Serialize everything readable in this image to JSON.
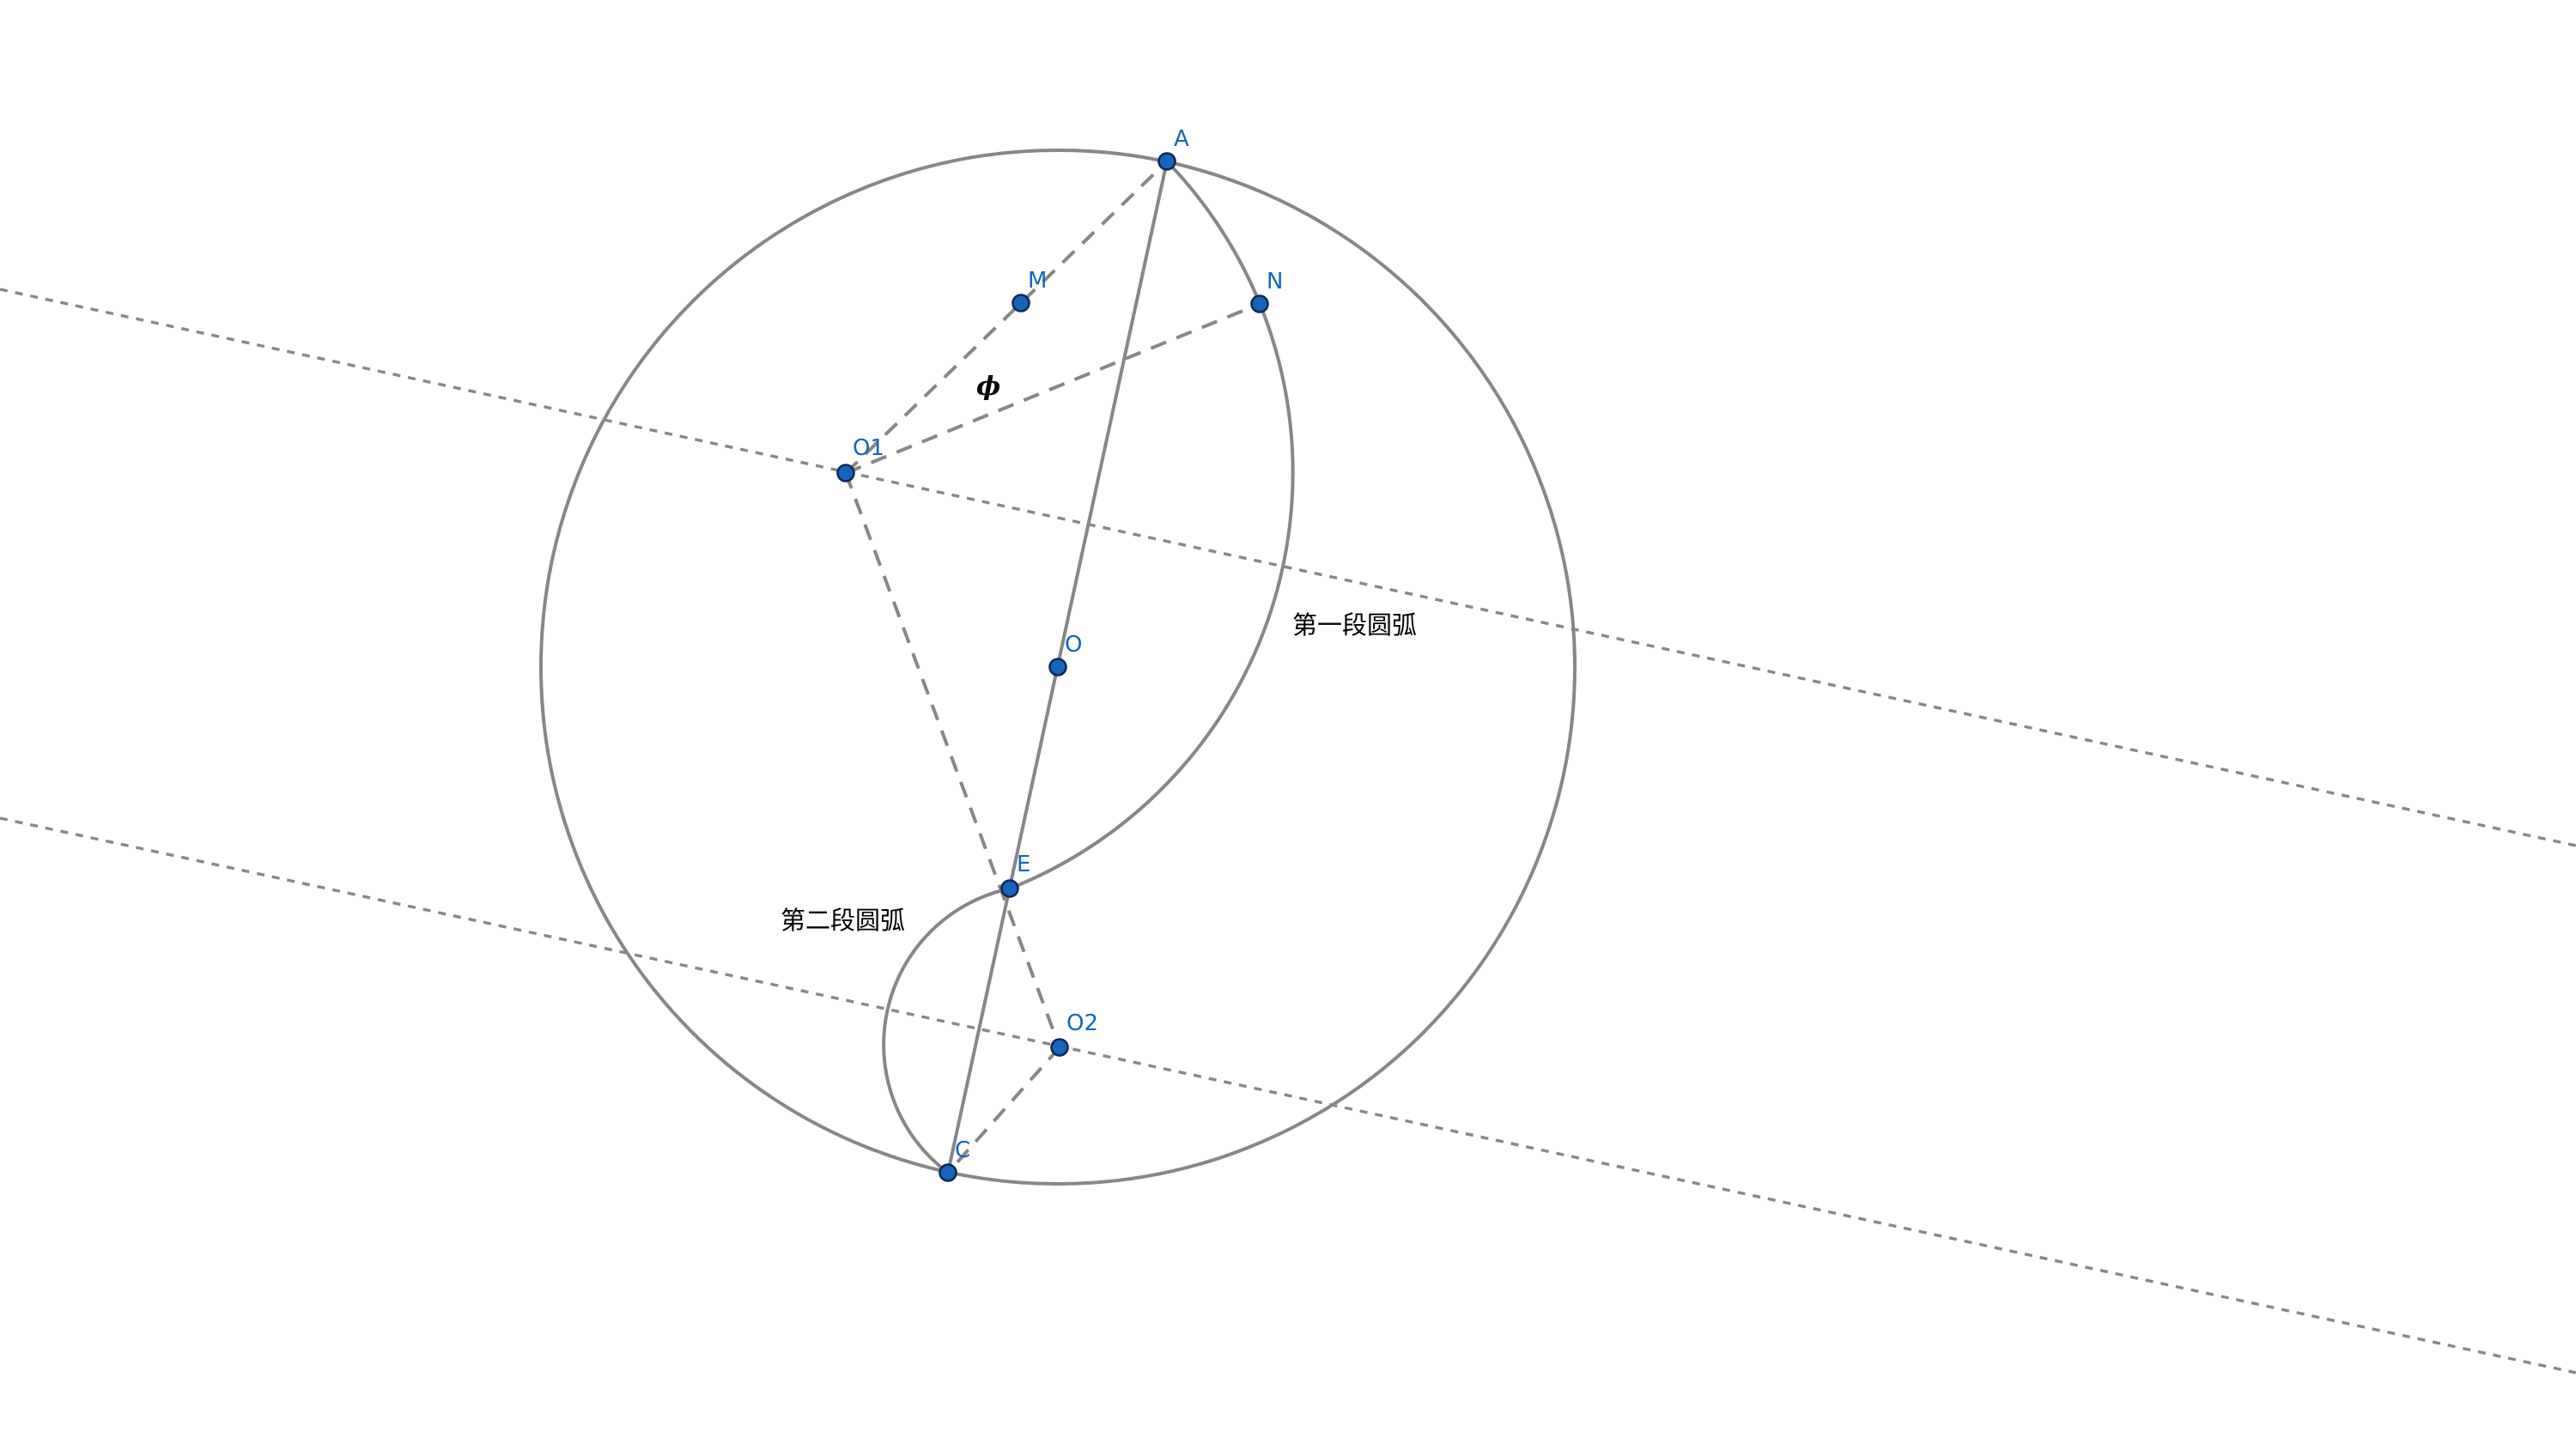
{
  "points": {
    "A": "A",
    "M": "M",
    "N": "N",
    "O1": "O1",
    "O": "O",
    "E": "E",
    "O2": "O2",
    "C": "C"
  },
  "labels": {
    "first_arc": "第一段圆弧",
    "second_arc": "第二段圆弧",
    "angle": "ϕ"
  },
  "colors": {
    "point_fill": "#1565c0",
    "point_label": "#1565c0",
    "line": "#878787",
    "text": "#000000"
  }
}
